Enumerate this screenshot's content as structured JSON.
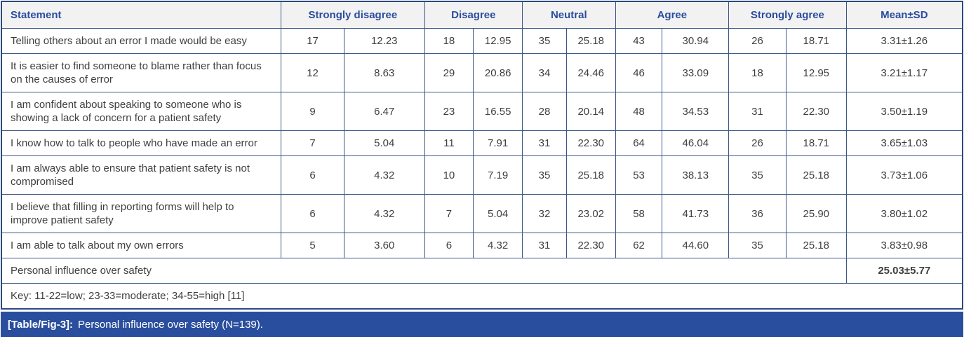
{
  "table": {
    "header": {
      "statement": "Statement",
      "likert": [
        "Strongly disagree",
        "Disagree",
        "Neutral",
        "Agree",
        "Strongly agree"
      ],
      "mean": "Mean±SD"
    },
    "rows": [
      {
        "statement": "Telling others about an error I made would be easy",
        "values": [
          "17",
          "12.23",
          "18",
          "12.95",
          "35",
          "25.18",
          "43",
          "30.94",
          "26",
          "18.71"
        ],
        "mean": "3.31±1.26"
      },
      {
        "statement": "It is easier to find someone to blame rather than focus on the causes of error",
        "values": [
          "12",
          "8.63",
          "29",
          "20.86",
          "34",
          "24.46",
          "46",
          "33.09",
          "18",
          "12.95"
        ],
        "mean": "3.21±1.17"
      },
      {
        "statement": "I am confident about speaking to someone who is showing a lack of concern for a patient safety",
        "values": [
          "9",
          "6.47",
          "23",
          "16.55",
          "28",
          "20.14",
          "48",
          "34.53",
          "31",
          "22.30"
        ],
        "mean": "3.50±1.19"
      },
      {
        "statement": "I know how to talk to people who have made an error",
        "values": [
          "7",
          "5.04",
          "11",
          "7.91",
          "31",
          "22.30",
          "64",
          "46.04",
          "26",
          "18.71"
        ],
        "mean": "3.65±1.03"
      },
      {
        "statement": "I am always able to ensure that patient safety is not compromised",
        "values": [
          "6",
          "4.32",
          "10",
          "7.19",
          "35",
          "25.18",
          "53",
          "38.13",
          "35",
          "25.18"
        ],
        "mean": "3.73±1.06"
      },
      {
        "statement": "I believe that filling in reporting forms will help to improve patient safety",
        "values": [
          "6",
          "4.32",
          "7",
          "5.04",
          "32",
          "23.02",
          "58",
          "41.73",
          "36",
          "25.90"
        ],
        "mean": "3.80±1.02"
      },
      {
        "statement": "I am able to talk about my own errors",
        "values": [
          "5",
          "3.60",
          "6",
          "4.32",
          "31",
          "22.30",
          "62",
          "44.60",
          "35",
          "25.18"
        ],
        "mean": "3.83±0.98"
      }
    ],
    "summary": {
      "label": "Personal influence over safety",
      "mean": "25.03±5.77"
    },
    "key": "Key: 11-22=low; 23-33=moderate; 34-55=high [11]"
  },
  "caption": {
    "tag": "[Table/Fig-3]:",
    "text": "Personal influence over safety (N=139)."
  },
  "colors": {
    "header_text": "#2b4c9c",
    "header_bg": "#f2f2f3",
    "border": "#3b5787",
    "outer_border": "#2c4a80",
    "body_text": "#3f3f3f",
    "caption_bg": "#2a4e9e",
    "caption_text": "#ffffff"
  }
}
